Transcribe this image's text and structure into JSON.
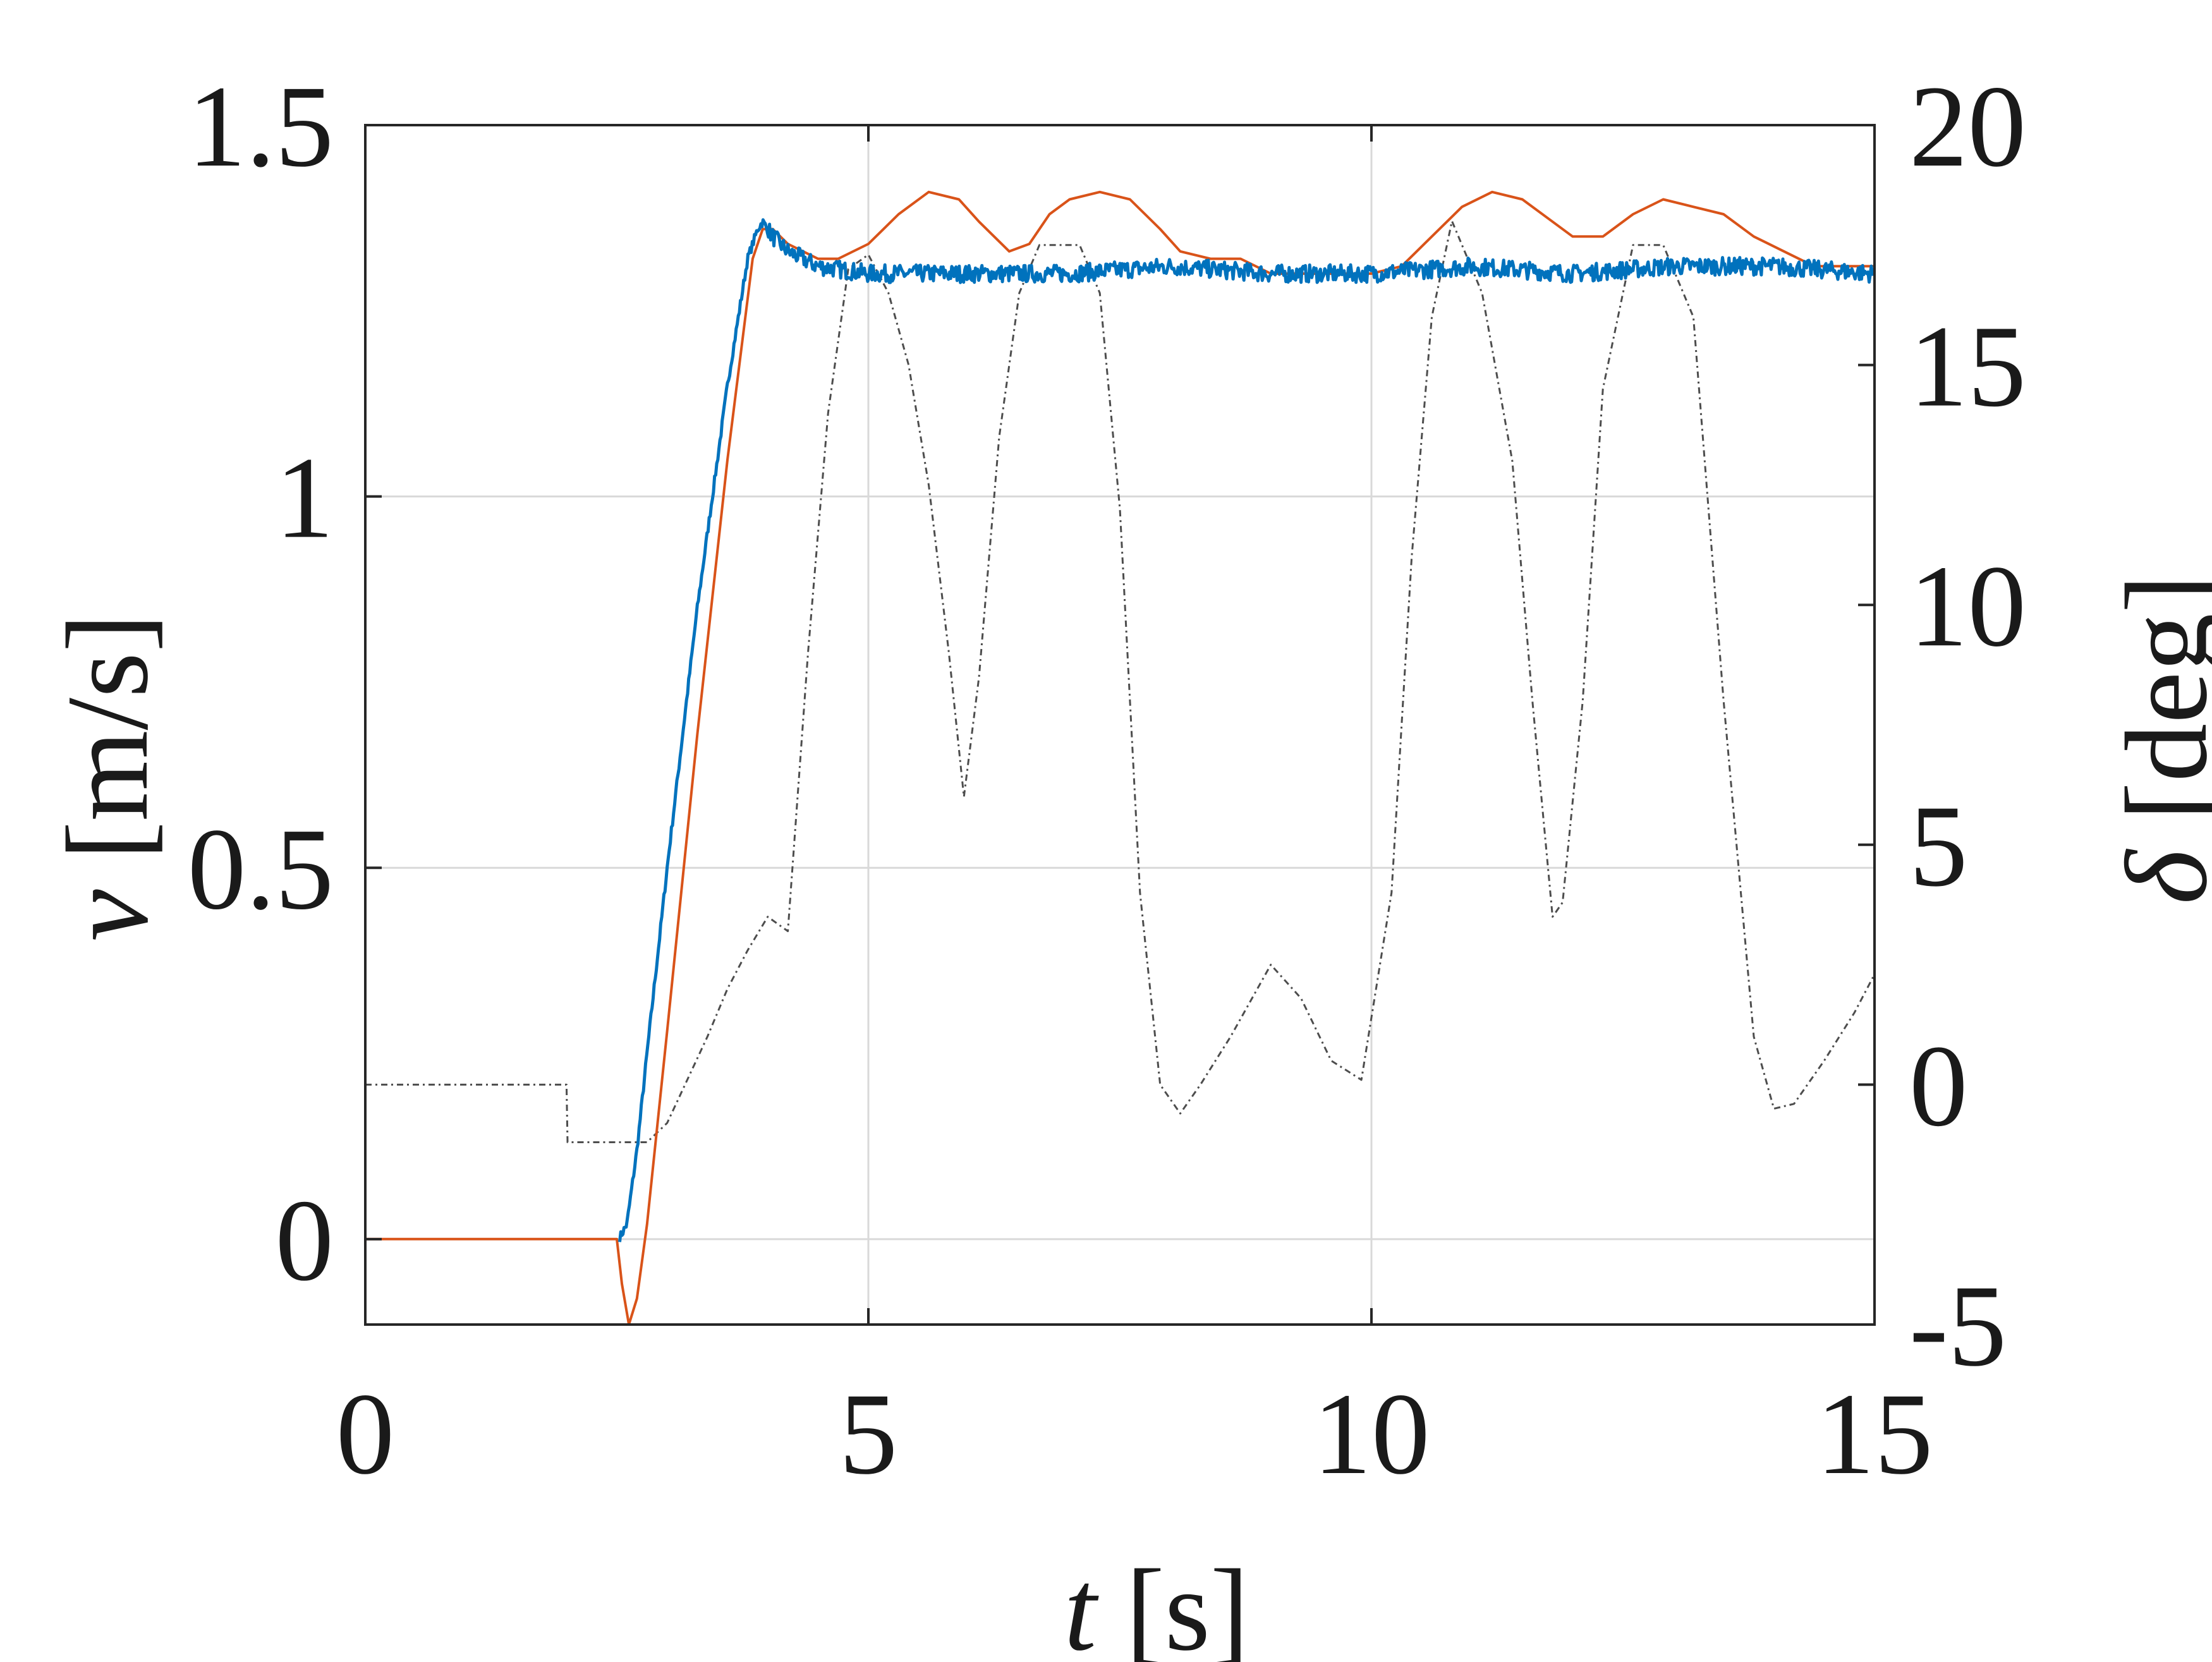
{
  "chart_data": {
    "type": "line",
    "xlabel": {
      "var": "t",
      "unit": " [s]"
    },
    "ylabel_left": {
      "var": "v",
      "unit": " [m/s]"
    },
    "ylabel_right": {
      "var": "δ",
      "unit": " [deg]"
    },
    "xlim": [
      0,
      15
    ],
    "ylim_left": [
      -0.115,
      1.5
    ],
    "ylim_right": [
      -5,
      20
    ],
    "xticks": [
      "0",
      "5",
      "10",
      "15"
    ],
    "xtick_values": [
      0,
      5,
      10,
      15
    ],
    "yticks_left": [
      "0",
      "0.5",
      "1",
      "1.5"
    ],
    "ytick_values_left": [
      0,
      0.5,
      1,
      1.5
    ],
    "yticks_right": [
      "-5",
      "0",
      "5",
      "10",
      "15",
      "20"
    ],
    "ytick_values_right": [
      -5,
      0,
      5,
      10,
      15,
      20
    ],
    "grid": true,
    "legend": "none",
    "colors": {
      "measured_speed": "#0072BD",
      "reference_speed": "#D95319",
      "steering_angle": "#4d4d4d",
      "grid": "#d9d9d9",
      "axes": "#262626"
    },
    "series": [
      {
        "key": "reference_speed",
        "axis": "left",
        "x": [
          0,
          2.5,
          2.55,
          2.62,
          2.7,
          2.8,
          3.0,
          3.3,
          3.6,
          3.85,
          3.95,
          4.05,
          4.2,
          4.5,
          4.7,
          5.0,
          5.3,
          5.6,
          5.9,
          6.1,
          6.4,
          6.6,
          6.8,
          7.0,
          7.3,
          7.6,
          7.9,
          8.1,
          8.4,
          8.7,
          9.0,
          9.5,
          10.0,
          10.3,
          10.6,
          10.9,
          11.2,
          11.5,
          11.8,
          12.0,
          12.3,
          12.6,
          12.9,
          13.2,
          13.5,
          13.8,
          14.1,
          14.4,
          14.7,
          15.0
        ],
        "y": [
          0,
          0,
          -0.06,
          -0.115,
          -0.08,
          0.02,
          0.28,
          0.68,
          1.05,
          1.32,
          1.36,
          1.36,
          1.34,
          1.32,
          1.32,
          1.34,
          1.38,
          1.41,
          1.4,
          1.37,
          1.33,
          1.34,
          1.38,
          1.4,
          1.41,
          1.4,
          1.36,
          1.33,
          1.32,
          1.32,
          1.3,
          1.3,
          1.3,
          1.31,
          1.35,
          1.39,
          1.41,
          1.4,
          1.37,
          1.35,
          1.35,
          1.38,
          1.4,
          1.39,
          1.38,
          1.35,
          1.33,
          1.31,
          1.31,
          1.31
        ]
      },
      {
        "key": "measured_speed",
        "axis": "left",
        "noise": 0.012,
        "x": [
          0,
          2.5,
          2.52,
          2.6,
          2.7,
          2.8,
          3.0,
          3.3,
          3.6,
          3.8,
          3.9,
          3.95,
          4.05,
          4.2,
          4.5,
          5.0,
          6.0,
          7.0,
          8.0,
          9.0,
          10.0,
          11.0,
          12.0,
          13.0,
          14.0,
          15.0
        ],
        "y": [
          null,
          null,
          0,
          0.02,
          0.12,
          0.25,
          0.5,
          0.85,
          1.15,
          1.32,
          1.36,
          1.37,
          1.35,
          1.33,
          1.31,
          1.3,
          1.3,
          1.3,
          1.31,
          1.3,
          1.3,
          1.31,
          1.3,
          1.31,
          1.31,
          1.3
        ]
      },
      {
        "key": "steering_angle",
        "axis": "right",
        "x": [
          0,
          2.0,
          2.01,
          2.8,
          3.0,
          3.4,
          3.6,
          3.8,
          4.0,
          4.2,
          4.4,
          4.6,
          4.8,
          5.0,
          5.2,
          5.4,
          5.6,
          5.8,
          5.95,
          6.1,
          6.3,
          6.5,
          6.7,
          7.0,
          7.1,
          7.3,
          7.5,
          7.7,
          7.9,
          8.1,
          8.3,
          8.6,
          9.0,
          9.3,
          9.6,
          9.9,
          10.2,
          10.4,
          10.6,
          10.8,
          11.1,
          11.4,
          11.6,
          11.8,
          11.9,
          12.1,
          12.3,
          12.6,
          12.9,
          13.2,
          13.5,
          13.8,
          14.0,
          14.2,
          14.5,
          14.8,
          15.0
        ],
        "y": [
          0,
          0,
          -1.2,
          -1.2,
          -0.8,
          1.0,
          2.0,
          2.8,
          3.5,
          3.2,
          9.0,
          14.0,
          17.0,
          17.3,
          16.5,
          15.0,
          12.5,
          9.0,
          6.0,
          8.5,
          13.5,
          16.5,
          17.5,
          17.5,
          17.5,
          16.5,
          12.0,
          4.0,
          0.0,
          -0.6,
          0.0,
          1.0,
          2.5,
          1.8,
          0.5,
          0.1,
          4.0,
          11.0,
          16.0,
          18.0,
          16.5,
          13.0,
          8.0,
          3.5,
          3.8,
          8.0,
          14.5,
          17.5,
          17.5,
          16.0,
          8.0,
          1.0,
          -0.5,
          -0.4,
          0.5,
          1.5,
          2.3
        ]
      }
    ]
  }
}
